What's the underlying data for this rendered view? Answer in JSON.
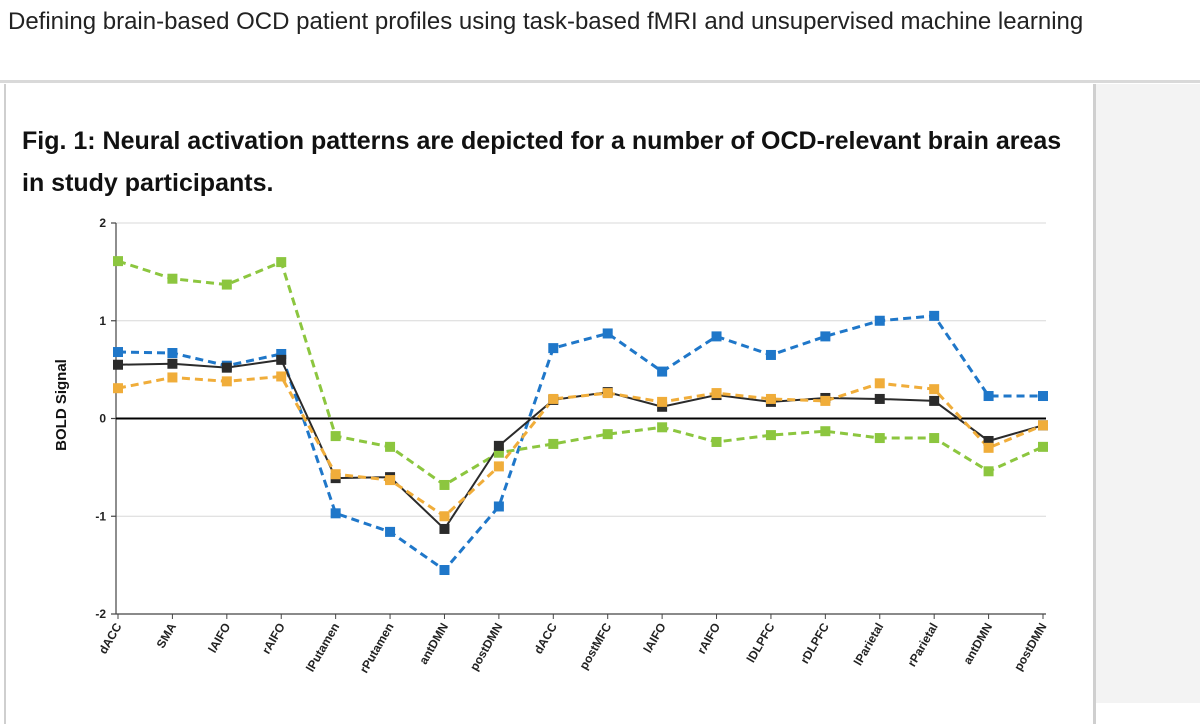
{
  "header": {
    "title": "Defining brain-based OCD patient profiles using task-based fMRI and unsupervised machine learning"
  },
  "figure": {
    "caption": "Fig. 1: Neural activation patterns are depicted for a number of OCD-relevant brain areas in study participants."
  },
  "chart_data": {
    "type": "line",
    "ylabel": "BOLD Signal",
    "xlabel": "",
    "ylim": [
      -2,
      2
    ],
    "yticks": [
      "2",
      "1",
      "0",
      "-1",
      "-2"
    ],
    "ytick_values": [
      2,
      1,
      0,
      -1,
      -2
    ],
    "categories": [
      "dACC",
      "SMA",
      "lAIFO",
      "rAIFO",
      "lPutamen",
      "rPutamen",
      "antDMN",
      "postDMN",
      "dACC",
      "postMFC",
      "lAIFO",
      "rAIFO",
      "lDLPFC",
      "rDLPFC",
      "lParietal",
      "rParietal",
      "antDMN",
      "postDMN"
    ],
    "series": [
      {
        "name": "blue",
        "color": "#1f77c9",
        "dashed": true,
        "values": [
          0.68,
          0.67,
          0.54,
          0.66,
          -0.97,
          -1.16,
          -1.55,
          -0.9,
          0.72,
          0.87,
          0.48,
          0.84,
          0.65,
          0.84,
          1.0,
          1.05,
          0.23,
          0.23
        ]
      },
      {
        "name": "green",
        "color": "#8cc63f",
        "dashed": true,
        "values": [
          1.61,
          1.43,
          1.37,
          1.6,
          -0.18,
          -0.29,
          -0.68,
          -0.35,
          -0.26,
          -0.16,
          -0.09,
          -0.24,
          -0.17,
          -0.13,
          -0.2,
          -0.2,
          -0.54,
          -0.29
        ]
      },
      {
        "name": "black",
        "color": "#2b2b2b",
        "dashed": false,
        "values": [
          0.55,
          0.56,
          0.52,
          0.6,
          -0.61,
          -0.6,
          -1.13,
          -0.28,
          0.19,
          0.27,
          0.12,
          0.24,
          0.17,
          0.21,
          0.2,
          0.18,
          -0.23,
          -0.07
        ]
      },
      {
        "name": "orange",
        "color": "#f0ad3a",
        "dashed": true,
        "values": [
          0.31,
          0.42,
          0.38,
          0.43,
          -0.57,
          -0.63,
          -1.0,
          -0.49,
          0.2,
          0.26,
          0.17,
          0.26,
          0.2,
          0.18,
          0.36,
          0.3,
          -0.3,
          -0.07
        ]
      }
    ],
    "grid": true,
    "zero_line": true
  }
}
